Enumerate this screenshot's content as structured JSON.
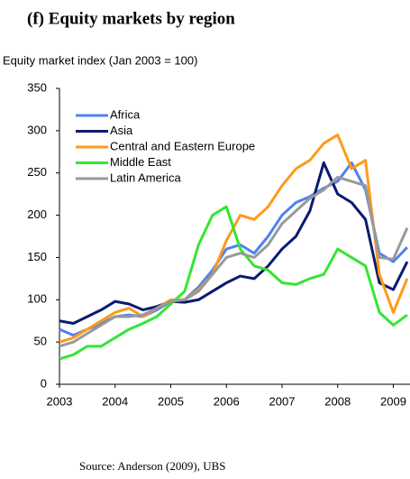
{
  "chart_data": {
    "type": "line",
    "title": "(f) Equity markets by region",
    "y_label": "Equity market index (Jan 2003 = 100)",
    "source": "Source: Anderson (2009), UBS",
    "x": [
      2003,
      2003.25,
      2003.5,
      2003.75,
      2004,
      2004.25,
      2004.5,
      2004.75,
      2005,
      2005.25,
      2005.5,
      2005.75,
      2006,
      2006.25,
      2006.5,
      2006.75,
      2007,
      2007.25,
      2007.5,
      2007.75,
      2008,
      2008.25,
      2008.5,
      2008.75,
      2009,
      2009.25
    ],
    "series": [
      {
        "name": "Africa",
        "color": "#4f81f0",
        "values": [
          65,
          58,
          65,
          72,
          80,
          82,
          80,
          88,
          98,
          100,
          115,
          135,
          160,
          165,
          155,
          175,
          200,
          215,
          222,
          232,
          240,
          262,
          230,
          155,
          145,
          162
        ]
      },
      {
        "name": "Asia",
        "color": "#0a1a6e",
        "values": [
          75,
          72,
          80,
          88,
          98,
          95,
          88,
          92,
          98,
          97,
          100,
          110,
          120,
          128,
          125,
          140,
          160,
          175,
          205,
          262,
          225,
          215,
          195,
          120,
          112,
          145
        ]
      },
      {
        "name": "Central and Eastern Europe",
        "color": "#ff9a1a",
        "values": [
          50,
          55,
          65,
          75,
          85,
          90,
          80,
          90,
          100,
          100,
          112,
          130,
          170,
          200,
          195,
          210,
          235,
          255,
          265,
          285,
          295,
          255,
          265,
          130,
          85,
          125
        ]
      },
      {
        "name": "Middle East",
        "color": "#33e633",
        "values": [
          30,
          35,
          45,
          45,
          55,
          65,
          72,
          80,
          95,
          110,
          165,
          200,
          210,
          160,
          140,
          135,
          120,
          118,
          125,
          130,
          160,
          150,
          140,
          85,
          70,
          82
        ]
      },
      {
        "name": "Latin America",
        "color": "#999999",
        "values": [
          45,
          50,
          60,
          70,
          80,
          80,
          82,
          90,
          98,
          100,
          110,
          130,
          150,
          155,
          150,
          165,
          190,
          205,
          220,
          230,
          245,
          240,
          235,
          150,
          148,
          185
        ]
      }
    ],
    "xlim": [
      2003,
      2009.3
    ],
    "ylim": [
      0,
      350
    ],
    "xticks": [
      2003,
      2004,
      2005,
      2006,
      2007,
      2008,
      2009
    ],
    "yticks": [
      0,
      50,
      100,
      150,
      200,
      250,
      300,
      350
    ]
  }
}
